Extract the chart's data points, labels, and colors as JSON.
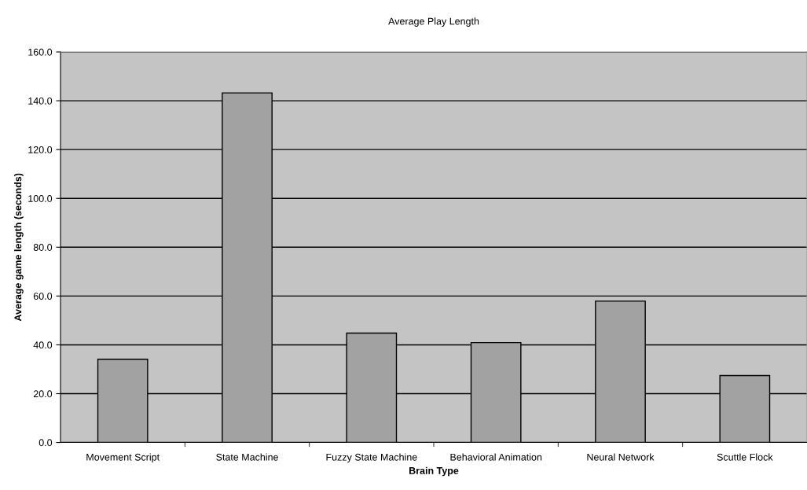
{
  "chart_data": {
    "type": "bar",
    "title": "Average Play Length",
    "xlabel": "Brain Type",
    "ylabel": "Average game length (seconds)",
    "categories": [
      "Movement Script",
      "State Machine",
      "Fuzzy State Machine",
      "Behavioral Animation",
      "Neural Network",
      "Scuttle Flock"
    ],
    "values": [
      34.1,
      143.2,
      44.8,
      40.9,
      57.9,
      27.4
    ],
    "color": "#a2a2a2",
    "ylim": [
      0,
      160
    ],
    "yticks": [
      {
        "value": 0,
        "label": "0.0"
      },
      {
        "value": 20,
        "label": "20.0"
      },
      {
        "value": 40,
        "label": "40.0"
      },
      {
        "value": 60,
        "label": "60.0"
      },
      {
        "value": 80,
        "label": "80.0"
      },
      {
        "value": 100,
        "label": "100.0"
      },
      {
        "value": 120,
        "label": "120.0"
      },
      {
        "value": 140,
        "label": "140.0"
      },
      {
        "value": 160,
        "label": "160.0"
      }
    ],
    "grid": "y",
    "legend": false
  }
}
